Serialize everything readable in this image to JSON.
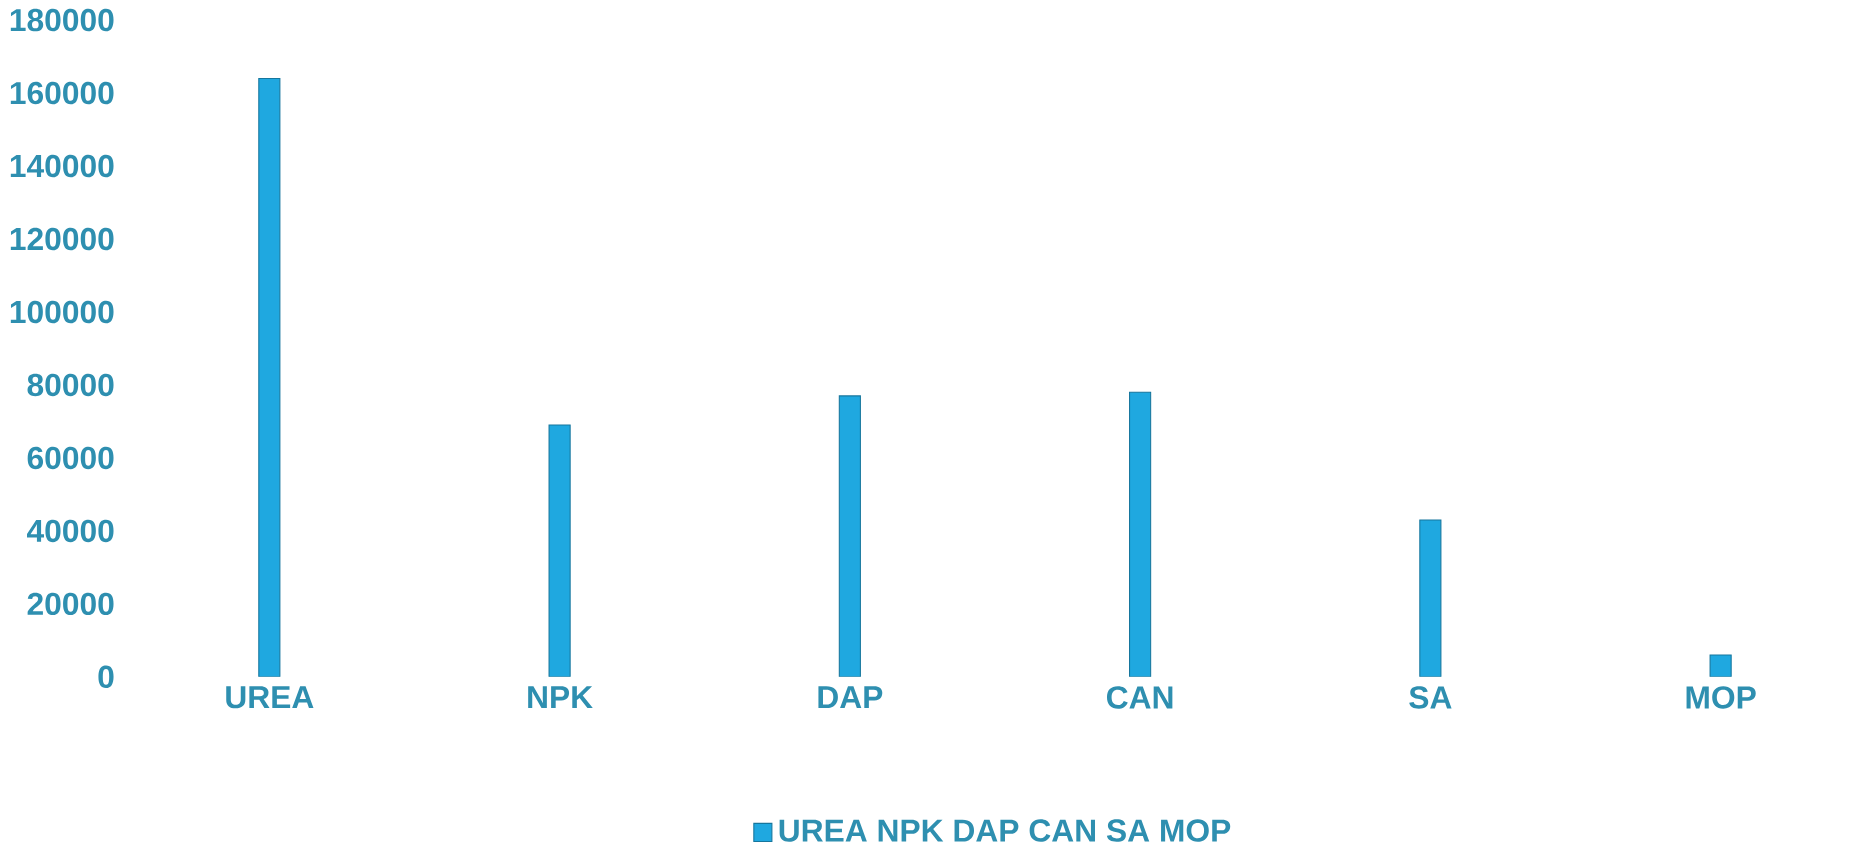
{
  "chart_data": {
    "type": "bar",
    "categories": [
      "UREA",
      "NPK",
      "DAP",
      "CAN",
      "SA",
      "MOP"
    ],
    "series": [
      {
        "name": "UREA NPK DAP CAN SA MOP",
        "color": "#1fa8e0",
        "values": [
          164000,
          69000,
          77000,
          78000,
          43000,
          6000
        ]
      }
    ],
    "ylim": [
      0,
      180000
    ],
    "yticks": [
      0,
      20000,
      40000,
      60000,
      80000,
      100000,
      120000,
      140000,
      160000,
      180000
    ],
    "grid": false,
    "legend": "bottom"
  }
}
